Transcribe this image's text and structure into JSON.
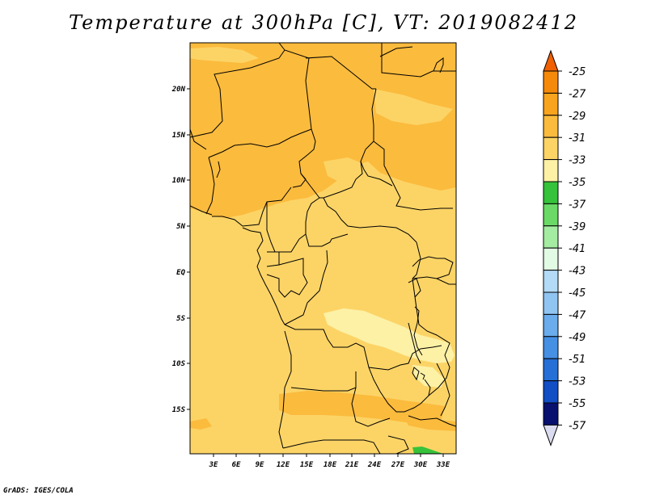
{
  "title": "Temperature at 300hPa [C], VT: 2019082412",
  "credit": "GrADS: IGES/COLA",
  "map": {
    "lat_labels": [
      "20N",
      "15N",
      "10N",
      "5N",
      "EQ",
      "5S",
      "10S",
      "15S"
    ],
    "lon_labels": [
      "3E",
      "6E",
      "9E",
      "12E",
      "15E",
      "18E",
      "21E",
      "24E",
      "27E",
      "30E",
      "33E"
    ]
  },
  "colorbar": {
    "labels": [
      "-25",
      "-27",
      "-29",
      "-31",
      "-33",
      "-35",
      "-37",
      "-39",
      "-41",
      "-43",
      "-45",
      "-47",
      "-49",
      "-51",
      "-53",
      "-55",
      "-57"
    ],
    "colors": [
      "#f06000",
      "#f58a0a",
      "#f8a41e",
      "#fbbb3d",
      "#fcd466",
      "#fdf1a6",
      "#36c23a",
      "#6ad966",
      "#a3eca1",
      "#e2fbe4",
      "#b3daf6",
      "#90c5f2",
      "#6aacec",
      "#4690e4",
      "#256fd6",
      "#124ec4",
      "#08116e",
      "#dcdcf0"
    ]
  },
  "chart_data": {
    "type": "heatmap",
    "title": "Temperature at 300hPa [C], VT: 2019082412",
    "variable": "Temperature at 300hPa",
    "units": "C",
    "valid_time": "2019082412",
    "lat_range": [
      -20,
      24
    ],
    "lon_range": [
      0,
      34
    ],
    "contour_levels": [
      -25,
      -27,
      -29,
      -31,
      -33,
      -35,
      -37,
      -39,
      -41,
      -43,
      -45,
      -47,
      -49,
      -51,
      -53,
      -55,
      -57
    ],
    "observed_range": [
      -37,
      -29
    ]
  }
}
